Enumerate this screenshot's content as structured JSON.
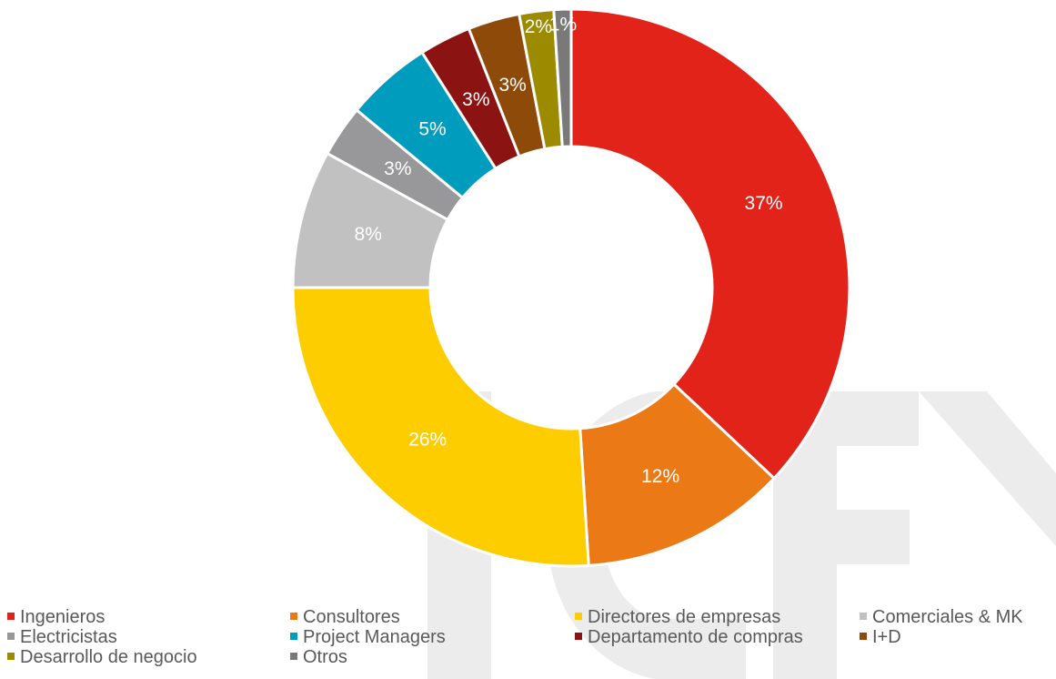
{
  "chart_data": {
    "type": "pie",
    "variant": "donut",
    "legend_position": "bottom",
    "watermark": "ICEX",
    "categories": [
      "Ingenieros",
      "Consultores",
      "Directores de empresas",
      "Comerciales & MK",
      "Electricistas",
      "Project Managers",
      "Departamento de compras",
      "I+D",
      "Desarrollo de negocio",
      "Otros"
    ],
    "values": [
      37,
      12,
      26,
      8,
      3,
      5,
      3,
      3,
      2,
      1
    ],
    "labels": [
      "37%",
      "12%",
      "26%",
      "8%",
      "3%",
      "5%",
      "3%",
      "3%",
      "2%",
      "1%"
    ],
    "colors": [
      "#E2231A",
      "#EB7A16",
      "#FDCD00",
      "#C2C1C1",
      "#98989A",
      "#009CBE",
      "#8B1413",
      "#8D4A08",
      "#9C8A00",
      "#797979"
    ]
  }
}
